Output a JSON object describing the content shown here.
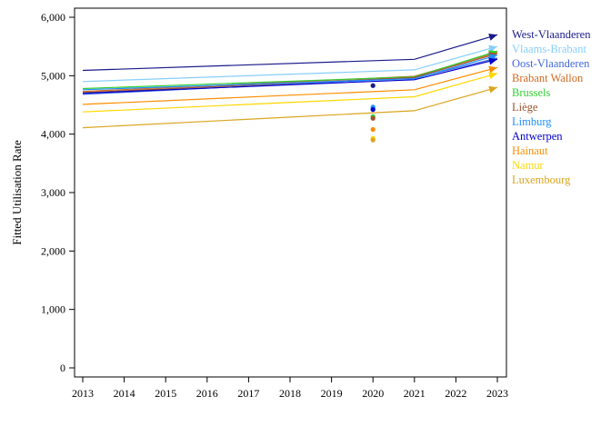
{
  "chart_data": {
    "type": "line",
    "title": "",
    "xlabel": "",
    "ylabel": "Fitted Utilisation Rate",
    "xlim": [
      2013,
      2023
    ],
    "ylim": [
      0,
      6000
    ],
    "x_ticks": [
      "2013",
      "2014",
      "2015",
      "2016",
      "2017",
      "2018",
      "2019",
      "2020",
      "2021",
      "2022",
      "2023"
    ],
    "y_ticks": [
      "0",
      "1,000",
      "2,000",
      "3,000",
      "4,000",
      "5,000",
      "6,000"
    ],
    "y_tick_values": [
      0,
      1000,
      2000,
      3000,
      4000,
      5000,
      6000
    ],
    "grid": false,
    "legend_position": "right",
    "x": [
      2013,
      2021,
      2023
    ],
    "series": [
      {
        "name": "West-Vlaanderen",
        "color": "#1a1a8c",
        "values": [
          5090,
          5280,
          5700
        ],
        "observed_2020": 4830
      },
      {
        "name": "Vlaams-Brabant",
        "color": "#87cefa",
        "values": [
          4900,
          5100,
          5500
        ],
        "observed_2020": 4470
      },
      {
        "name": "Oost-Vlaanderen",
        "color": "#4169e1",
        "values": [
          4680,
          4960,
          5300
        ],
        "observed_2020": 4430
      },
      {
        "name": "Brabant Wallon",
        "color": "#d2691e",
        "values": [
          4730,
          4990,
          5400
        ],
        "observed_2020": 4280
      },
      {
        "name": "Brussels",
        "color": "#32cd32",
        "values": [
          4780,
          4980,
          5420
        ],
        "observed_2020": 4300
      },
      {
        "name": "Liège",
        "color": "#a0522d",
        "values": [
          4710,
          4970,
          5380
        ],
        "observed_2020": 4270
      },
      {
        "name": "Limburg",
        "color": "#1e90ff",
        "values": [
          4760,
          4950,
          5350
        ],
        "observed_2020": 4460
      },
      {
        "name": "Antwerpen",
        "color": "#0000cd",
        "values": [
          4700,
          4930,
          5280
        ],
        "observed_2020": 4420
      },
      {
        "name": "Hainaut",
        "color": "#ff8c00",
        "values": [
          4510,
          4760,
          5140
        ],
        "observed_2020": 4080
      },
      {
        "name": "Namur",
        "color": "#ffd700",
        "values": [
          4380,
          4640,
          5040
        ],
        "observed_2020": 3930
      },
      {
        "name": "Luxembourg",
        "color": "#daa520",
        "values": [
          4110,
          4400,
          4800
        ],
        "observed_2020": 3900
      }
    ]
  }
}
